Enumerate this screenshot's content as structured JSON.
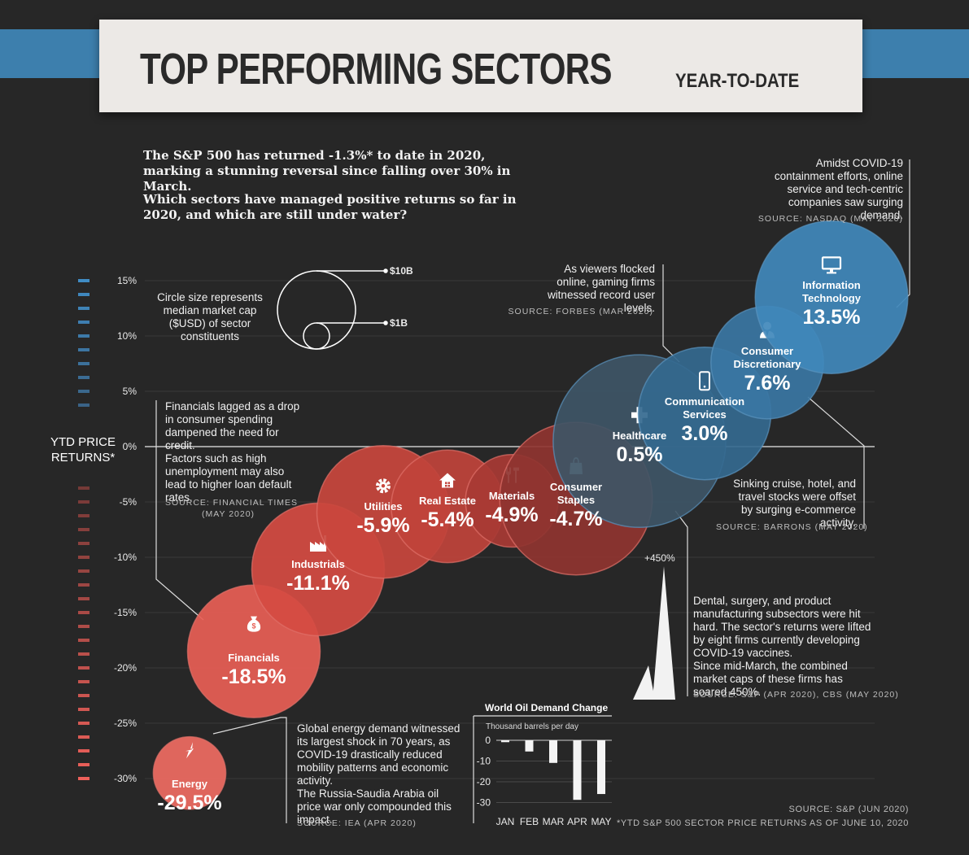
{
  "header": {
    "title": "TOP PERFORMING SECTORS",
    "subtitle": "YEAR-TO-DATE"
  },
  "intro": {
    "line1": "The S&P 500 has returned -1.3%* to date in 2020, marking a stunning reversal since falling over 30% in March.",
    "line2": "Which sectors have managed positive returns so far in 2020, and which are still under water?"
  },
  "legend": {
    "text": "Circle size represents median market cap ($USD) of sector constituents",
    "big_label": "$10B",
    "small_label": "$1B"
  },
  "axis_title": "YTD PRICE RETURNS*",
  "notes": {
    "info_tech": {
      "text": "Amidst COVID-19 containment efforts, online service and tech-centric companies saw surging demand.",
      "source": "SOURCE: NASDAQ (MAY 2020)"
    },
    "gaming": {
      "text": "As viewers flocked online, gaming firms witnessed record user levels.",
      "source": "SOURCE: FORBES (MAR 2020)"
    },
    "financials": {
      "text1": "Financials lagged as a drop in consumer spending dampened the need for credit.",
      "text2": "Factors such as high unemployment may also lead to higher loan default rates.",
      "source": "SOURCE: FINANCIAL TIMES",
      "source2": "(MAY 2020)"
    },
    "consumer_disc": {
      "text": "Sinking cruise, hotel, and travel stocks were offset by surging e-commerce activity.",
      "source": "SOURCE: BARRONS (MAY 2020)"
    },
    "healthcare": {
      "text1": "Dental, surgery, and product manufacturing subsectors were hit hard. The sector's returns were lifted by eight firms currently developing COVID-19 vaccines.",
      "text2": "Since mid-March, the combined market caps of these firms has soared 450%.",
      "source": "SOURCE: S&P (APR 2020), CBS (MAY 2020)",
      "spike_label": "+450%"
    },
    "energy": {
      "text1": "Global energy demand witnessed its largest shock in 70 years, as COVID-19 drastically reduced mobility patterns and economic activity.",
      "text2": "The Russia-Saudia Arabia oil price war only compounded this impact.",
      "source": "SOURCE: IEA (APR 2020)"
    }
  },
  "footer": {
    "source": "SOURCE: S&P  (JUN 2020)",
    "footnote": "*YTD S&P 500 SECTOR PRICE RETURNS AS OF JUNE 10, 2020"
  },
  "colors": {
    "positive": "#3d7fad",
    "negative": "#c9463d",
    "background": "#272727",
    "banner": "#ece9e6"
  },
  "chart_data": [
    {
      "type": "scatter",
      "title": "TOP PERFORMING SECTORS",
      "ylabel": "YTD PRICE RETURNS*",
      "ylim": [
        -30,
        15
      ],
      "yticks": [
        "15%",
        "10%",
        "5%",
        "0%",
        "-5%",
        "-10%",
        "-15%",
        "-20%",
        "-25%",
        "-30%"
      ],
      "ytick_values": [
        15,
        10,
        5,
        0,
        -5,
        -10,
        -15,
        -20,
        -25,
        -30
      ],
      "series": [
        {
          "name": "Energy",
          "value": -29.5,
          "label": "-29.5%",
          "icon": "lightning-icon",
          "color": "#ef6b62",
          "size_rank": 2
        },
        {
          "name": "Financials",
          "value": -18.5,
          "label": "-18.5%",
          "icon": "money-bag-icon",
          "color": "#e85e55",
          "size_rank": 5
        },
        {
          "name": "Industrials",
          "value": -11.1,
          "label": "-11.1%",
          "icon": "factory-icon",
          "color": "#d54b42",
          "size_rank": 5
        },
        {
          "name": "Utilities",
          "value": -5.9,
          "label": "-5.9%",
          "icon": "gear-icon",
          "color": "#c9463d",
          "size_rank": 5
        },
        {
          "name": "Real Estate",
          "value": -5.4,
          "label": "-5.4%",
          "icon": "house-icon",
          "color": "#c0433b",
          "size_rank": 4
        },
        {
          "name": "Materials",
          "value": -4.9,
          "label": "-4.9%",
          "icon": "tools-icon",
          "color": "#a83a34",
          "size_rank": 3
        },
        {
          "name": "Consumer Staples",
          "value": -4.7,
          "label": "-4.7%",
          "icon": "shopping-bag-icon",
          "color": "#8f3430",
          "size_rank": 6
        },
        {
          "name": "Healthcare",
          "value": 0.5,
          "label": "0.5%",
          "icon": "cross-icon",
          "color": "#3e5566",
          "size_rank": 7
        },
        {
          "name": "Communication Services",
          "value": 3.0,
          "label": "3.0%",
          "icon": "phone-icon",
          "color": "#34698f",
          "size_rank": 5
        },
        {
          "name": "Consumer Discretionary",
          "value": 7.6,
          "label": "7.6%",
          "icon": "person-icon",
          "color": "#3a76a3",
          "size_rank": 4
        },
        {
          "name": "Information Technology",
          "value": 13.5,
          "label": "13.5%",
          "icon": "monitor-icon",
          "color": "#4088bb",
          "size_rank": 6
        }
      ]
    },
    {
      "type": "bar",
      "title": "World Oil Demand Change",
      "ylabel": "Thousand barrels per day",
      "categories": [
        "JAN",
        "FEB",
        "MAR",
        "APR",
        "MAY"
      ],
      "values": [
        -0.9,
        -5.4,
        -10.9,
        -28.7,
        -25.9
      ],
      "ylim": [
        -30,
        0
      ],
      "yticks": [
        "0",
        "-10",
        "-20",
        "-30"
      ],
      "ytick_values": [
        0,
        -10,
        -20,
        -30
      ]
    }
  ]
}
